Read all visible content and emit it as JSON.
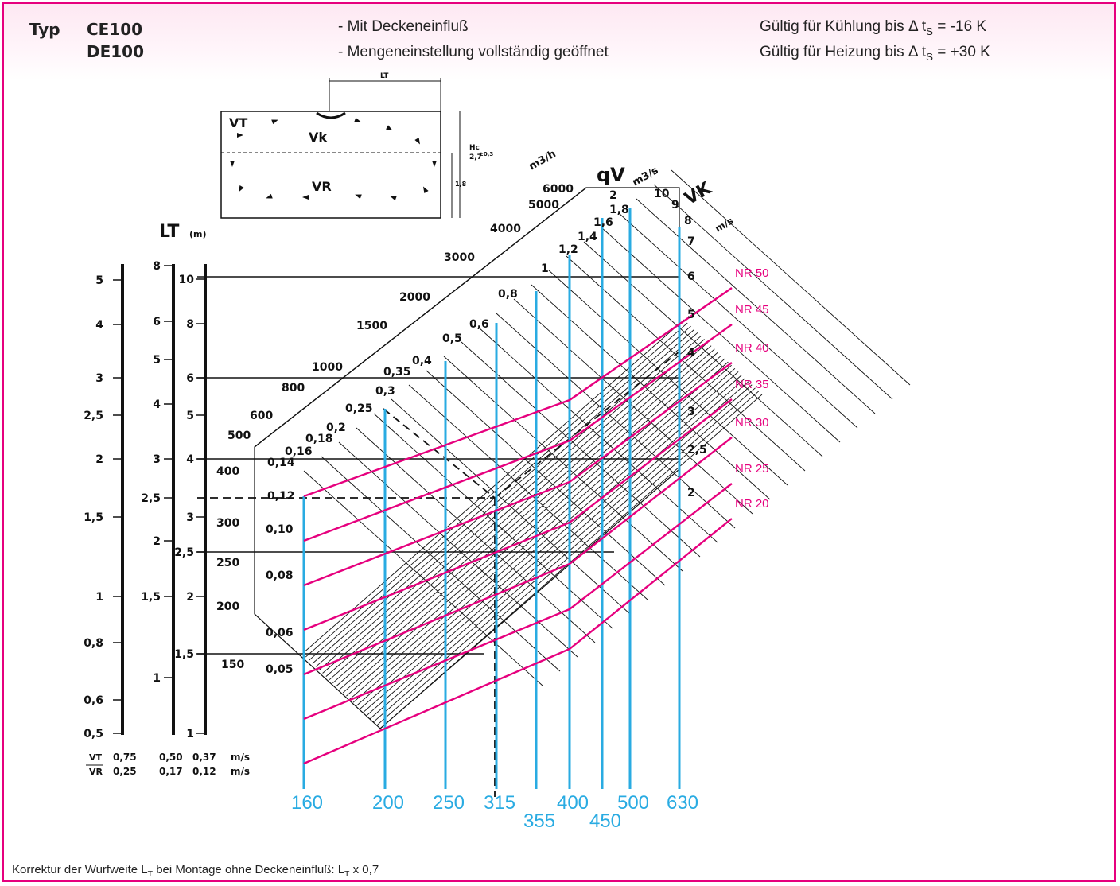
{
  "header": {
    "type_label": "Typ",
    "types": [
      "CE100",
      "DE100"
    ],
    "notes": [
      "- Mit Deckeneinfluß",
      "- Mengeneinstellung vollständig geöffnet"
    ],
    "validity_cooling_prefix": "Gültig für Kühlung bis Δ t",
    "validity_cooling_sub": "S",
    "validity_cooling_value": "= -16 K",
    "validity_heating_prefix": "Gültig für Heizung bis Δ t",
    "validity_heating_sub": "S",
    "validity_heating_value": "= +30 K"
  },
  "footer": {
    "prefix": "Korrektur der Wurfweite L",
    "sub": "T",
    "middle": " bei Montage ohne Deckeneinfluß: L",
    "sub2": "T",
    "suffix": " x 0,7"
  },
  "colors": {
    "accent": "#e6007e",
    "size_lines": "#29abe2",
    "grid": "#111111"
  },
  "chart_data": {
    "type": "line",
    "room_sketch": {
      "labels": [
        "VT",
        "Vk",
        "VR",
        "LT",
        "Hc",
        "2,7",
        "±0,3",
        "1,8"
      ]
    },
    "lt_axis": {
      "label": "LT",
      "unit": "(m)",
      "scale_a": {
        "values": [
          "5",
          "4",
          "3",
          "2,5",
          "2",
          "1,5",
          "1",
          "0,8",
          "0,6",
          "0,5"
        ],
        "vt": "0,75",
        "vr": "0,25"
      },
      "scale_b": {
        "values": [
          "8",
          "6",
          "5",
          "4",
          "3",
          "2,5",
          "2",
          "1,5",
          "1"
        ],
        "vt": "0,50",
        "vr": "0,17"
      },
      "scale_c": {
        "values": [
          "10",
          "8",
          "6",
          "5",
          "4",
          "3",
          "2,5",
          "2",
          "1,5",
          "1"
        ],
        "vt": "0,37",
        "vr": "0,12"
      },
      "vt_label": "VT",
      "vr_label": "VR",
      "speed_unit": "m/s"
    },
    "volume_flow_m3h": {
      "unit": "m3/h",
      "ticks": [
        "150",
        "200",
        "250",
        "300",
        "400",
        "500",
        "600",
        "800",
        "1000",
        "1500",
        "2000",
        "3000",
        "4000",
        "5000",
        "6000"
      ]
    },
    "volume_flow_m3s": {
      "label": "qV",
      "unit": "m3/s",
      "ticks": [
        "0,05",
        "0,06",
        "0,08",
        "0,10",
        "0,12",
        "0,14",
        "0,16",
        "0,18",
        "0,2",
        "0,25",
        "0,3",
        "0,35",
        "0,4",
        "0,5",
        "0,6",
        "0,8",
        "1",
        "1,2",
        "1,4",
        "1,6",
        "1,8",
        "2"
      ]
    },
    "velocity_vk": {
      "label": "VK",
      "unit": "m/s",
      "ticks": [
        "2",
        "2,5",
        "3",
        "4",
        "5",
        "6",
        "7",
        "8",
        "9",
        "10"
      ]
    },
    "nominal_sizes": [
      "160",
      "200",
      "250",
      "315",
      "355",
      "400",
      "450",
      "500",
      "630"
    ],
    "noise_curves": [
      "NR 50",
      "NR 45",
      "NR 40",
      "NR 35",
      "NR 30",
      "NR 25",
      "NR 20"
    ],
    "grid": true
  }
}
